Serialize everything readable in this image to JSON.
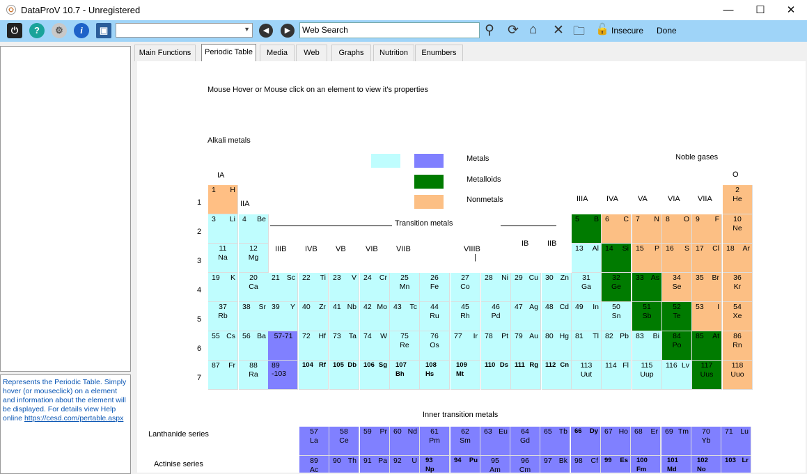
{
  "window": {
    "title": "DataProV 10.7 - Unregistered",
    "minimize": "—",
    "maximize": "☐",
    "close": "✕"
  },
  "toolbar": {
    "combo_value": "",
    "search_value": "Web Search",
    "insecure_label": "Insecure",
    "done_label": "Done",
    "icons": [
      "power-icon",
      "help-icon",
      "settings-icon",
      "info-icon",
      "monitor-icon",
      "back-icon",
      "forward-icon",
      "search-icon",
      "refresh-icon",
      "home-icon",
      "stop-icon",
      "new-folder-icon",
      "lock-icon"
    ]
  },
  "help_text": "Represents the Periodic Table. Simply hover (or mouseclick) on a element and information about the element will be displayed. For details view Help online",
  "help_link": "https://cesd.com/pertable.aspx",
  "tabs": [
    "Main Functions",
    "Periodic Table",
    "Media",
    "Web",
    "Graphs",
    "Nutrition",
    "Enumbers"
  ],
  "active_tab": "Periodic Table",
  "content": {
    "instruction": "Mouse Hover or Mouse click on an element to view it's properties",
    "alkali_label": "Alkali metals",
    "noble_label": "Noble gases",
    "transition_label": "Transition metals",
    "inner_transition_label": "Inner transition metals",
    "lanthanide_label": "Lanthanide series",
    "actinide_label": "Actinise series",
    "legend": [
      {
        "label": "Metals",
        "color": "#8080ff"
      },
      {
        "label": "Metalloids",
        "color": "#007b00"
      },
      {
        "label": "Nonmetals",
        "color": "#fcbf84"
      }
    ],
    "legend_extra_color": "#bffdfe",
    "group_labels": [
      "IA",
      "IIA",
      "IIIB",
      "IVB",
      "VB",
      "VIB",
      "VIIB",
      "VIIIB",
      "IB",
      "IIB",
      "IIIA",
      "IVA",
      "VA",
      "VIA",
      "VIIA",
      "O"
    ],
    "period_labels": [
      "1",
      "2",
      "3",
      "4",
      "5",
      "6",
      "7"
    ],
    "viii_bar": "|"
  },
  "elements": [
    {
      "n": "1",
      "s": "H",
      "style": "inline",
      "t": "hyd"
    },
    {
      "n": "2",
      "s": "He",
      "style": "stack",
      "t": "noble"
    },
    {
      "n": "3",
      "s": "Li",
      "style": "inline",
      "t": "alk"
    },
    {
      "n": "4",
      "s": "Be",
      "style": "inline",
      "t": "alk"
    },
    {
      "n": "5",
      "s": "B",
      "style": "inline",
      "t": "metalloid"
    },
    {
      "n": "6",
      "s": "C",
      "style": "inline",
      "t": "nonmetal"
    },
    {
      "n": "7",
      "s": "N",
      "style": "inline",
      "t": "nonmetal"
    },
    {
      "n": "8",
      "s": "O",
      "style": "inline",
      "t": "nonmetal"
    },
    {
      "n": "9",
      "s": "F",
      "style": "inline",
      "t": "nonmetal"
    },
    {
      "n": "10",
      "s": "Ne",
      "style": "stack",
      "t": "noble"
    },
    {
      "n": "11",
      "s": "Na",
      "style": "stack",
      "t": "alk"
    },
    {
      "n": "12",
      "s": "Mg",
      "style": "stack",
      "t": "alk"
    },
    {
      "n": "13",
      "s": "Al",
      "style": "inline",
      "t": "alk"
    },
    {
      "n": "14",
      "s": "Si",
      "style": "inline",
      "t": "metalloid"
    },
    {
      "n": "15",
      "s": "P",
      "style": "inline",
      "t": "nonmetal"
    },
    {
      "n": "16",
      "s": "S",
      "style": "inline",
      "t": "nonmetal"
    },
    {
      "n": "17",
      "s": "Cl",
      "style": "inline",
      "t": "nonmetal"
    },
    {
      "n": "18",
      "s": "Ar",
      "style": "inline",
      "t": "noble"
    },
    {
      "n": "19",
      "s": "K",
      "style": "inline",
      "t": "alk"
    },
    {
      "n": "20",
      "s": "Ca",
      "style": "stack",
      "t": "alk"
    },
    {
      "n": "21",
      "s": "Sc",
      "style": "inline",
      "t": "trans"
    },
    {
      "n": "22",
      "s": "Ti",
      "style": "inline",
      "t": "trans"
    },
    {
      "n": "23",
      "s": "V",
      "style": "inline",
      "t": "trans"
    },
    {
      "n": "24",
      "s": "Cr",
      "style": "inline",
      "t": "trans"
    },
    {
      "n": "25",
      "s": "Mn",
      "style": "stack",
      "t": "trans"
    },
    {
      "n": "26",
      "s": "Fe",
      "style": "stack",
      "t": "trans"
    },
    {
      "n": "27",
      "s": "Co",
      "style": "stack",
      "t": "trans"
    },
    {
      "n": "28",
      "s": "Ni",
      "style": "inline",
      "t": "trans"
    },
    {
      "n": "29",
      "s": "Cu",
      "style": "inline",
      "t": "trans"
    },
    {
      "n": "30",
      "s": "Zn",
      "style": "inline",
      "t": "trans"
    },
    {
      "n": "31",
      "s": "Ga",
      "style": "stack",
      "t": "alk"
    },
    {
      "n": "32",
      "s": "Ge",
      "style": "stack",
      "t": "metalloid"
    },
    {
      "n": "33",
      "s": "As",
      "style": "inline",
      "t": "metalloid"
    },
    {
      "n": "34",
      "s": "Se",
      "style": "stack",
      "t": "nonmetal"
    },
    {
      "n": "35",
      "s": "Br",
      "style": "inline",
      "t": "nonmetal"
    },
    {
      "n": "36",
      "s": "Kr",
      "style": "stack",
      "t": "noble"
    },
    {
      "n": "37",
      "s": "Rb",
      "style": "stack",
      "t": "alk"
    },
    {
      "n": "38",
      "s": "Sr",
      "style": "inline",
      "t": "alk"
    },
    {
      "n": "39",
      "s": "Y",
      "style": "inline",
      "t": "trans"
    },
    {
      "n": "40",
      "s": "Zr",
      "style": "inline",
      "t": "trans"
    },
    {
      "n": "41",
      "s": "Nb",
      "style": "inline",
      "t": "trans"
    },
    {
      "n": "42",
      "s": "Mo",
      "style": "inline",
      "t": "trans"
    },
    {
      "n": "43",
      "s": "Tc",
      "style": "inline",
      "t": "trans"
    },
    {
      "n": "44",
      "s": "Ru",
      "style": "stack",
      "t": "trans"
    },
    {
      "n": "45",
      "s": "Rh",
      "style": "stack",
      "t": "trans"
    },
    {
      "n": "46",
      "s": "Pd",
      "style": "stack",
      "t": "trans"
    },
    {
      "n": "47",
      "s": "Ag",
      "style": "inline",
      "t": "trans"
    },
    {
      "n": "48",
      "s": "Cd",
      "style": "inline",
      "t": "trans"
    },
    {
      "n": "49",
      "s": "In",
      "style": "inline",
      "t": "alk"
    },
    {
      "n": "50",
      "s": "Sn",
      "style": "stack",
      "t": "alk"
    },
    {
      "n": "51",
      "s": "Sb",
      "style": "stack",
      "t": "metalloid"
    },
    {
      "n": "52",
      "s": "Te",
      "style": "stack",
      "t": "metalloid"
    },
    {
      "n": "53",
      "s": "I",
      "style": "inline",
      "t": "nonmetal"
    },
    {
      "n": "54",
      "s": "Xe",
      "style": "stack",
      "t": "noble"
    },
    {
      "n": "55",
      "s": "Cs",
      "style": "inline",
      "t": "alk"
    },
    {
      "n": "56",
      "s": "Ba",
      "style": "inline",
      "t": "alk"
    },
    {
      "n": "57-71",
      "s": "",
      "style": "inline",
      "t": "metal"
    },
    {
      "n": "72",
      "s": "Hf",
      "style": "inline",
      "t": "trans"
    },
    {
      "n": "73",
      "s": "Ta",
      "style": "inline",
      "t": "trans"
    },
    {
      "n": "74",
      "s": "W",
      "style": "inline",
      "t": "trans"
    },
    {
      "n": "75",
      "s": "Re",
      "style": "stack",
      "t": "trans"
    },
    {
      "n": "76",
      "s": "Os",
      "style": "stack",
      "t": "trans"
    },
    {
      "n": "77",
      "s": "Ir",
      "style": "inline",
      "t": "trans"
    },
    {
      "n": "78",
      "s": "Pt",
      "style": "inline",
      "t": "trans"
    },
    {
      "n": "79",
      "s": "Au",
      "style": "inline",
      "t": "trans"
    },
    {
      "n": "80",
      "s": "Hg",
      "style": "inline",
      "t": "trans"
    },
    {
      "n": "81",
      "s": "Tl",
      "style": "inline",
      "t": "alk"
    },
    {
      "n": "82",
      "s": "Pb",
      "style": "inline",
      "t": "alk"
    },
    {
      "n": "83",
      "s": "Bi",
      "style": "inline",
      "t": "alk"
    },
    {
      "n": "84",
      "s": "Po",
      "style": "stack",
      "t": "metalloid"
    },
    {
      "n": "85",
      "s": "At",
      "style": "inline",
      "t": "metalloid"
    },
    {
      "n": "86",
      "s": "Rn",
      "style": "stack",
      "t": "noble"
    },
    {
      "n": "87",
      "s": "Fr",
      "style": "inline",
      "t": "alk"
    },
    {
      "n": "88",
      "s": "Ra",
      "style": "stack",
      "t": "alk"
    },
    {
      "n": "89 -103",
      "s": "",
      "style": "inline",
      "t": "metal"
    },
    {
      "n": "104",
      "s": "Rf",
      "style": "bold",
      "t": "trans"
    },
    {
      "n": "105",
      "s": "Db",
      "style": "bold",
      "t": "trans"
    },
    {
      "n": "106",
      "s": "Sg",
      "style": "bold",
      "t": "trans"
    },
    {
      "n": "107",
      "s": "Bh",
      "style": "boldstack",
      "t": "trans"
    },
    {
      "n": "108",
      "s": "Hs",
      "style": "boldstack",
      "t": "trans"
    },
    {
      "n": "109",
      "s": "Mt",
      "style": "boldstack",
      "t": "trans"
    },
    {
      "n": "110",
      "s": "Ds",
      "style": "bold",
      "t": "trans"
    },
    {
      "n": "111",
      "s": "Rg",
      "style": "bold",
      "t": "trans"
    },
    {
      "n": "112",
      "s": "Cn",
      "style": "bold",
      "t": "trans"
    },
    {
      "n": "113",
      "s": "Uut",
      "style": "stack",
      "t": "alk"
    },
    {
      "n": "114",
      "s": "Fl",
      "style": "inline",
      "t": "alk"
    },
    {
      "n": "115",
      "s": "Uup",
      "style": "stack",
      "t": "alk"
    },
    {
      "n": "116",
      "s": "Lv",
      "style": "inline",
      "t": "alk"
    },
    {
      "n": "117",
      "s": "Uus",
      "style": "stack",
      "t": "metalloid"
    },
    {
      "n": "118",
      "s": "Uuo",
      "style": "stack",
      "t": "noble"
    }
  ],
  "lanthanides": [
    {
      "n": "57",
      "s": "La",
      "style": "stack"
    },
    {
      "n": "58",
      "s": "Ce",
      "style": "stack"
    },
    {
      "n": "59",
      "s": "Pr",
      "style": "inline"
    },
    {
      "n": "60",
      "s": "Nd",
      "style": "inline"
    },
    {
      "n": "61",
      "s": "Pm",
      "style": "stack"
    },
    {
      "n": "62",
      "s": "Sm",
      "style": "stack"
    },
    {
      "n": "63",
      "s": "Eu",
      "style": "inline"
    },
    {
      "n": "64",
      "s": "Gd",
      "style": "stack"
    },
    {
      "n": "65",
      "s": "Tb",
      "style": "inline"
    },
    {
      "n": "66",
      "s": "Dy",
      "style": "bold"
    },
    {
      "n": "67",
      "s": "Ho",
      "style": "inline"
    },
    {
      "n": "68",
      "s": "Er",
      "style": "inline"
    },
    {
      "n": "69",
      "s": "Tm",
      "style": "inline"
    },
    {
      "n": "70",
      "s": "Yb",
      "style": "stack"
    },
    {
      "n": "71",
      "s": "Lu",
      "style": "inline"
    }
  ],
  "actinides": [
    {
      "n": "89",
      "s": "Ac",
      "style": "stack"
    },
    {
      "n": "90",
      "s": "Th",
      "style": "inline"
    },
    {
      "n": "91",
      "s": "Pa",
      "style": "inline"
    },
    {
      "n": "92",
      "s": "U",
      "style": "inline"
    },
    {
      "n": "93",
      "s": "Np",
      "style": "boldstack"
    },
    {
      "n": "94",
      "s": "Pu",
      "style": "bold"
    },
    {
      "n": "95",
      "s": "Am",
      "style": "stack"
    },
    {
      "n": "96",
      "s": "Cm",
      "style": "stack"
    },
    {
      "n": "97",
      "s": "Bk",
      "style": "inline"
    },
    {
      "n": "98",
      "s": "Cf",
      "style": "inline"
    },
    {
      "n": "99",
      "s": "Es",
      "style": "bold"
    },
    {
      "n": "100",
      "s": "Fm",
      "style": "boldstack"
    },
    {
      "n": "101",
      "s": "Md",
      "style": "boldstack"
    },
    {
      "n": "102",
      "s": "No",
      "style": "boldstack"
    },
    {
      "n": "103",
      "s": "Lr",
      "style": "bold"
    }
  ]
}
